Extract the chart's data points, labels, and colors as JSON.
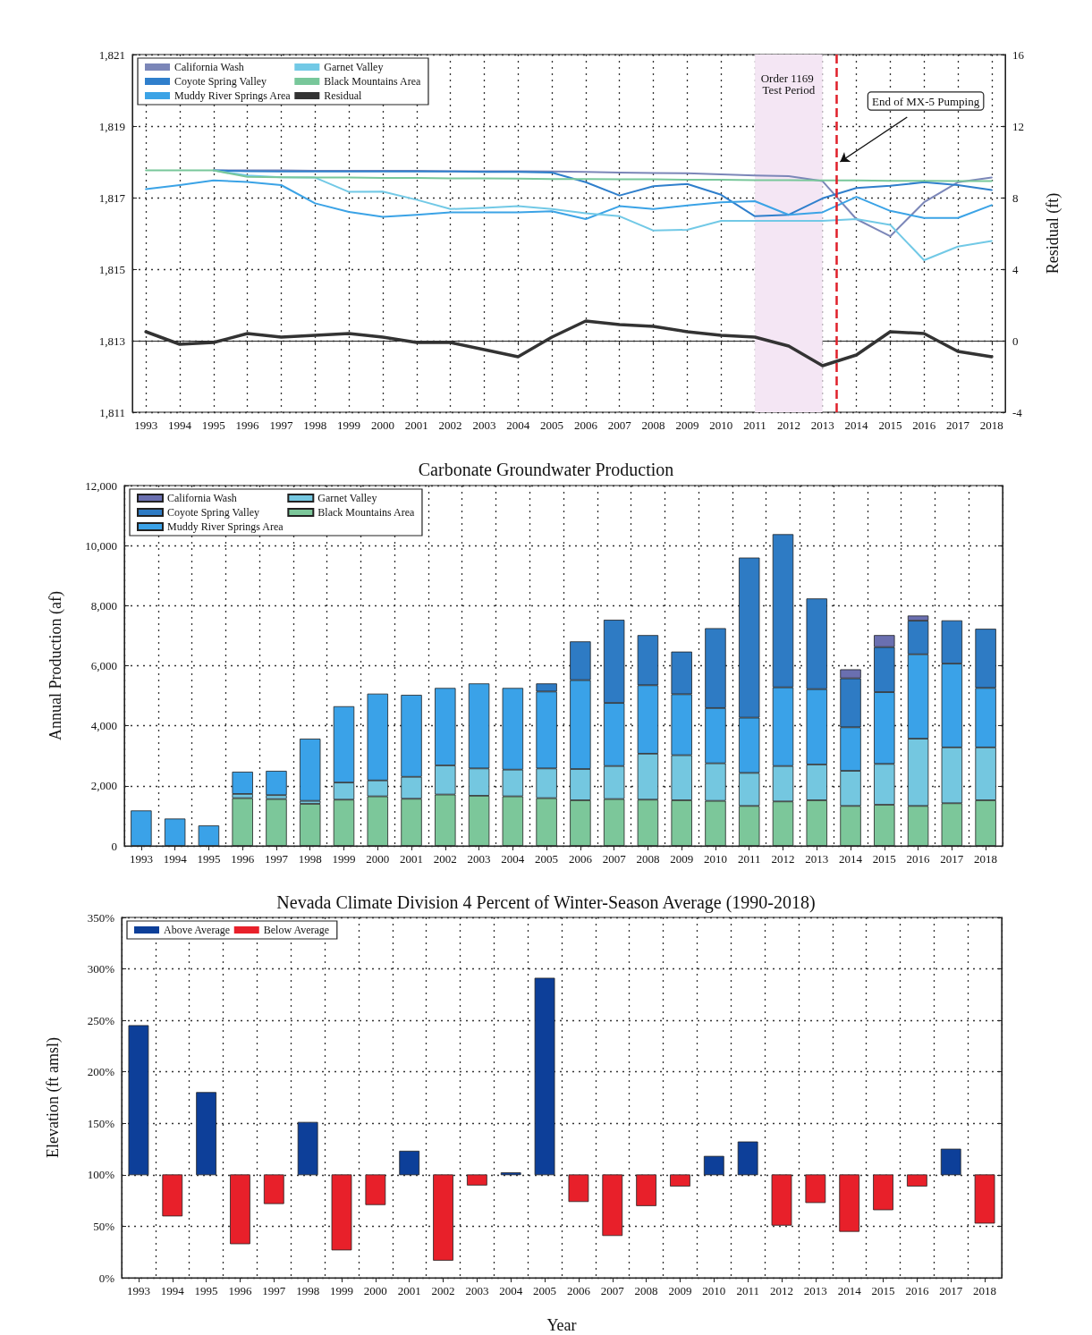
{
  "chart_data": [
    {
      "type": "line",
      "y2label": "Residual (ft)",
      "x": [
        1993,
        1994,
        1995,
        1996,
        1997,
        1998,
        1999,
        2000,
        2001,
        2002,
        2003,
        2004,
        2005,
        2006,
        2007,
        2008,
        2009,
        2010,
        2011,
        2012,
        2013,
        2014,
        2015,
        2016,
        2017,
        2018
      ],
      "xlim": [
        1992.6,
        2018.4
      ],
      "xticks": [
        1993,
        1994,
        1995,
        1996,
        1997,
        1998,
        1999,
        2000,
        2001,
        2002,
        2003,
        2004,
        2005,
        2006,
        2007,
        2008,
        2009,
        2010,
        2011,
        2012,
        2013,
        2014,
        2015,
        2016,
        2017,
        2018
      ],
      "ylim": [
        1811,
        1821
      ],
      "yticks": [
        {
          "value": 1811,
          "label": "1,811"
        },
        {
          "value": 1813,
          "label": "1,813"
        },
        {
          "value": 1815,
          "label": "1,815"
        },
        {
          "value": 1817,
          "label": "1,817"
        },
        {
          "value": 1819,
          "label": "1,819"
        },
        {
          "value": 1821,
          "label": "1,821"
        }
      ],
      "y2lim": [
        -4,
        16
      ],
      "y2ticks": [
        -4,
        0,
        4,
        8,
        12,
        16
      ],
      "grid": true,
      "legend": "top left",
      "marker": "none",
      "line_style": "solid",
      "bands": [
        {
          "axis": "x",
          "from": 2011,
          "to": 2013,
          "label": "Order 1169 Test Period",
          "color": "#f4e6f4"
        }
      ],
      "ref_lines": [
        {
          "axis": "x",
          "value": 2013.4,
          "label": "End of MX-5 Pumping",
          "color": "#e0202a",
          "line_style": "dashed"
        }
      ],
      "series": [
        {
          "name": "California Wash",
          "color": "#7b86b8",
          "values": [
            null,
            null,
            1817.76,
            1817.76,
            1817.76,
            1817.75,
            1817.75,
            1817.75,
            1817.75,
            1817.74,
            1817.74,
            1817.74,
            1817.73,
            1817.72,
            1817.7,
            1817.69,
            1817.68,
            1817.65,
            1817.62,
            1817.6,
            1817.46,
            1816.4,
            1815.92,
            1816.87,
            1817.43,
            1817.56
          ]
        },
        {
          "name": "Coyote Spring Valley",
          "color": "#2f7fcc",
          "values": [
            null,
            null,
            1817.76,
            1817.74,
            1817.73,
            1817.73,
            1817.73,
            1817.73,
            1817.73,
            1817.73,
            1817.72,
            1817.72,
            1817.7,
            1817.43,
            1817.06,
            1817.32,
            1817.38,
            1817.08,
            1816.48,
            1816.52,
            1816.98,
            1817.27,
            1817.33,
            1817.43,
            1817.35,
            1817.21
          ]
        },
        {
          "name": "Muddy River Springs Area",
          "color": "#3ba3e6",
          "values": [
            1817.24,
            1817.35,
            1817.48,
            1817.44,
            1817.35,
            1816.84,
            1816.6,
            1816.46,
            1816.52,
            1816.59,
            1816.59,
            1816.59,
            1816.62,
            1816.4,
            1816.76,
            1816.68,
            1816.78,
            1816.87,
            1816.9,
            1816.52,
            1816.59,
            1817.02,
            1816.63,
            1816.43,
            1816.43,
            1816.79
          ]
        },
        {
          "name": "Garnet Valley",
          "color": "#72c9e6",
          "values": [
            null,
            null,
            1817.76,
            1817.62,
            1817.57,
            1817.56,
            1817.16,
            1817.17,
            1816.94,
            1816.68,
            1816.71,
            1816.76,
            1816.68,
            1816.56,
            1816.48,
            1816.08,
            1816.1,
            1816.35,
            1816.35,
            1816.35,
            1816.35,
            1816.4,
            1816.24,
            1815.25,
            1815.63,
            1815.79
          ]
        },
        {
          "name": "Black Mountains Area",
          "color": "#78c79a",
          "values": [
            1817.76,
            1817.76,
            1817.76,
            1817.58,
            1817.57,
            1817.56,
            1817.56,
            1817.55,
            1817.55,
            1817.54,
            1817.54,
            1817.53,
            1817.52,
            1817.52,
            1817.51,
            1817.51,
            1817.5,
            1817.5,
            1817.49,
            1817.49,
            1817.48,
            1817.48,
            1817.47,
            1817.47,
            1817.46,
            1817.46
          ]
        },
        {
          "name": "Residual",
          "color": "#333333",
          "axis": "y2",
          "values": [
            0.5,
            -0.2,
            -0.1,
            0.4,
            0.2,
            0.3,
            0.4,
            0.2,
            -0.1,
            -0.1,
            -0.5,
            -0.9,
            0.2,
            1.1,
            0.9,
            0.8,
            0.5,
            0.3,
            0.2,
            -0.3,
            -1.4,
            -0.8,
            0.5,
            0.4,
            -0.6,
            -0.9
          ]
        }
      ]
    },
    {
      "type": "bar",
      "title": "Carbonate Groundwater Production",
      "ylabel": "Annual Production (af)",
      "stacked": true,
      "categories": [
        "1993",
        "1994",
        "1995",
        "1996",
        "1997",
        "1998",
        "1999",
        "2000",
        "2001",
        "2002",
        "2003",
        "2004",
        "2005",
        "2006",
        "2007",
        "2008",
        "2009",
        "2010",
        "2011",
        "2012",
        "2013",
        "2014",
        "2015",
        "2016",
        "2017",
        "2018"
      ],
      "ylim": [
        0,
        12000
      ],
      "yticks": [
        0,
        {
          "value": 2000,
          "label": "2,000"
        },
        {
          "value": 4000,
          "label": "4,000"
        },
        {
          "value": 6000,
          "label": "6,000"
        },
        {
          "value": 8000,
          "label": "8,000"
        },
        {
          "value": 10000,
          "label": "10,000"
        },
        {
          "value": 12000,
          "label": "12,000"
        }
      ],
      "grid": true,
      "legend": "top left",
      "series": [
        {
          "name": "Black Mountains Area",
          "color": "#7cc79a",
          "values": [
            null,
            null,
            null,
            1590,
            1560,
            1400,
            1540,
            1650,
            1570,
            1710,
            1670,
            1650,
            1590,
            1520,
            1560,
            1540,
            1520,
            1500,
            1330,
            1480,
            1520,
            1330,
            1370,
            1330,
            1420,
            1520
          ]
        },
        {
          "name": "Garnet Valley",
          "color": "#74c7e0",
          "values": [
            null,
            null,
            null,
            140,
            130,
            100,
            570,
            530,
            730,
            970,
            910,
            890,
            990,
            1040,
            1100,
            1530,
            1500,
            1250,
            1100,
            1180,
            1190,
            1170,
            1360,
            2240,
            1860,
            1760
          ]
        },
        {
          "name": "Muddy River Springs Area",
          "color": "#3aa2e8",
          "values": [
            1180,
            910,
            680,
            740,
            810,
            2070,
            2540,
            2890,
            2730,
            2580,
            2830,
            2720,
            2560,
            2960,
            2100,
            2280,
            2030,
            1840,
            1840,
            2620,
            2510,
            1450,
            2390,
            2810,
            2790,
            1980
          ]
        },
        {
          "name": "Coyote Spring Valley",
          "color": "#2e7bc4",
          "values": [
            null,
            null,
            null,
            null,
            null,
            null,
            null,
            null,
            null,
            null,
            null,
            null,
            270,
            1290,
            2770,
            1670,
            1420,
            2660,
            5330,
            5100,
            3020,
            1630,
            1500,
            1120,
            1440,
            1970
          ]
        },
        {
          "name": "California Wash",
          "color": "#6a6fb0",
          "values": [
            null,
            null,
            null,
            null,
            null,
            null,
            null,
            null,
            null,
            null,
            null,
            null,
            null,
            null,
            null,
            null,
            null,
            null,
            null,
            null,
            null,
            300,
            400,
            170,
            null,
            null
          ]
        }
      ]
    },
    {
      "type": "bar",
      "title": "Nevada Climate Division 4 Percent of Winter-Season Average (1990-2018)",
      "xlabel": "Year",
      "ylabel": "Elevation (ft amsl)",
      "categories": [
        "1993",
        "1994",
        "1995",
        "1996",
        "1997",
        "1998",
        "1999",
        "2000",
        "2001",
        "2002",
        "2003",
        "2004",
        "2005",
        "2006",
        "2007",
        "2008",
        "2009",
        "2010",
        "2011",
        "2012",
        "2013",
        "2014",
        "2015",
        "2016",
        "2017",
        "2018"
      ],
      "ylim": [
        0,
        350
      ],
      "yticks": [
        {
          "value": 0,
          "label": "0%"
        },
        {
          "value": 50,
          "label": "50%"
        },
        {
          "value": 100,
          "label": "100%"
        },
        {
          "value": 150,
          "label": "150%"
        },
        {
          "value": 200,
          "label": "200%"
        },
        {
          "value": 250,
          "label": "250%"
        },
        {
          "value": 300,
          "label": "300%"
        },
        {
          "value": 350,
          "label": "350%"
        }
      ],
      "grid": true,
      "legend": "top left",
      "series": [
        {
          "name": "Above Average",
          "color": "#0d3f99",
          "base": [
            100,
            null,
            100,
            null,
            null,
            100,
            null,
            null,
            100,
            null,
            null,
            100,
            100,
            null,
            null,
            null,
            null,
            100,
            100,
            null,
            null,
            null,
            null,
            null,
            100,
            null
          ],
          "values": [
            145,
            null,
            80,
            null,
            null,
            51,
            null,
            null,
            23,
            null,
            null,
            2,
            191,
            null,
            null,
            null,
            null,
            18,
            32,
            null,
            null,
            null,
            null,
            null,
            25,
            null
          ]
        },
        {
          "name": "Below Average",
          "color": "#e8202a",
          "base": [
            null,
            100,
            null,
            100,
            100,
            null,
            100,
            100,
            null,
            100,
            100,
            null,
            null,
            100,
            100,
            100,
            100,
            null,
            null,
            100,
            100,
            100,
            100,
            100,
            null,
            100
          ],
          "values": [
            null,
            -40,
            null,
            -67,
            -28,
            null,
            -73,
            -29,
            null,
            -83,
            -10,
            null,
            null,
            -26,
            -59,
            -30,
            -11,
            null,
            null,
            -49,
            -27,
            -55,
            -34,
            -11,
            null,
            -47
          ]
        }
      ]
    }
  ]
}
